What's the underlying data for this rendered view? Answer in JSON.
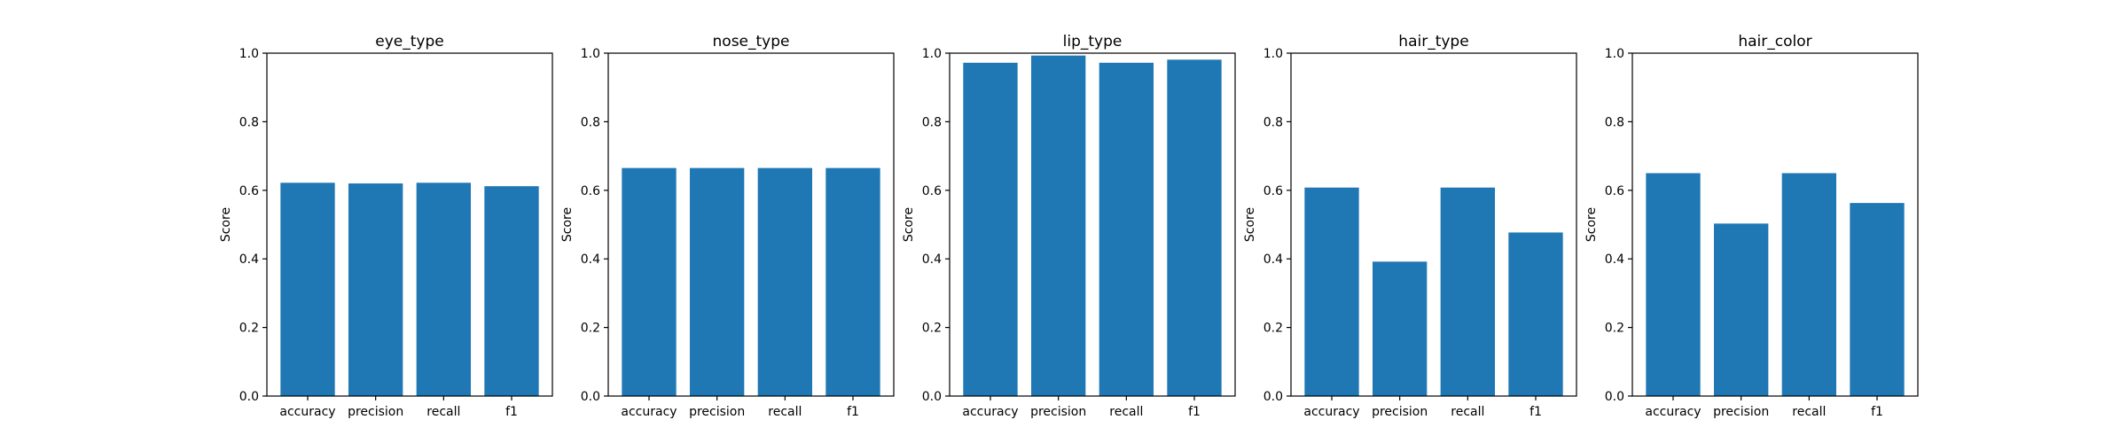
{
  "chart_data": [
    {
      "type": "bar",
      "title": "eye_type",
      "ylabel": "Score",
      "xlabel": "",
      "categories": [
        "accuracy",
        "precision",
        "recall",
        "f1"
      ],
      "values": [
        0.622,
        0.62,
        0.622,
        0.612
      ],
      "ylim": [
        0,
        1.0
      ],
      "yticks": [
        "0.0",
        "0.2",
        "0.4",
        "0.6",
        "0.8",
        "1.0"
      ],
      "bar_color": "#1f77b4"
    },
    {
      "type": "bar",
      "title": "nose_type",
      "ylabel": "Score",
      "xlabel": "",
      "categories": [
        "accuracy",
        "precision",
        "recall",
        "f1"
      ],
      "values": [
        0.665,
        0.665,
        0.665,
        0.665
      ],
      "ylim": [
        0,
        1.0
      ],
      "yticks": [
        "0.0",
        "0.2",
        "0.4",
        "0.6",
        "0.8",
        "1.0"
      ],
      "bar_color": "#1f77b4"
    },
    {
      "type": "bar",
      "title": "lip_type",
      "ylabel": "Score",
      "xlabel": "",
      "categories": [
        "accuracy",
        "precision",
        "recall",
        "f1"
      ],
      "values": [
        0.972,
        0.993,
        0.972,
        0.981
      ],
      "ylim": [
        0,
        1.0
      ],
      "yticks": [
        "0.0",
        "0.2",
        "0.4",
        "0.6",
        "0.8",
        "1.0"
      ],
      "bar_color": "#1f77b4"
    },
    {
      "type": "bar",
      "title": "hair_type",
      "ylabel": "Score",
      "xlabel": "",
      "categories": [
        "accuracy",
        "precision",
        "recall",
        "f1"
      ],
      "values": [
        0.608,
        0.392,
        0.608,
        0.477
      ],
      "ylim": [
        0,
        1.0
      ],
      "yticks": [
        "0.0",
        "0.2",
        "0.4",
        "0.6",
        "0.8",
        "1.0"
      ],
      "bar_color": "#1f77b4"
    },
    {
      "type": "bar",
      "title": "hair_color",
      "ylabel": "Score",
      "xlabel": "",
      "categories": [
        "accuracy",
        "precision",
        "recall",
        "f1"
      ],
      "values": [
        0.65,
        0.503,
        0.65,
        0.563
      ],
      "ylim": [
        0,
        1.0
      ],
      "yticks": [
        "0.0",
        "0.2",
        "0.4",
        "0.6",
        "0.8",
        "1.0"
      ],
      "bar_color": "#1f77b4"
    }
  ]
}
